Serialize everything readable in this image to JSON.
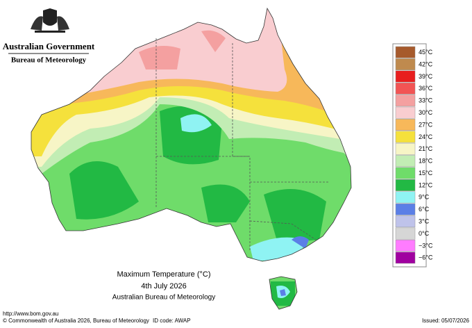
{
  "header": {
    "government": "Australian Government",
    "agency": "Bureau of Meteorology"
  },
  "map": {
    "title": "Maximum Temperature (°C)",
    "date": "4th July 2026",
    "source": "Australian Bureau of Meteorology"
  },
  "legend": [
    {
      "label": "45°C",
      "color": "#a65a2c"
    },
    {
      "label": "42°C",
      "color": "#bf8a4e"
    },
    {
      "label": "39°C",
      "color": "#e81e1e"
    },
    {
      "label": "36°C",
      "color": "#f25454"
    },
    {
      "label": "33°C",
      "color": "#f4a0a0"
    },
    {
      "label": "30°C",
      "color": "#f9cdd0"
    },
    {
      "label": "27°C",
      "color": "#f7b85a"
    },
    {
      "label": "24°C",
      "color": "#f5e13c"
    },
    {
      "label": "21°C",
      "color": "#f7f5c6"
    },
    {
      "label": "18°C",
      "color": "#c2edb4"
    },
    {
      "label": "15°C",
      "color": "#6fdc6a"
    },
    {
      "label": "12°C",
      "color": "#22b944"
    },
    {
      "label": "9°C",
      "color": "#8ff3f3"
    },
    {
      "label": "6°C",
      "color": "#5b7fe6"
    },
    {
      "label": "3°C",
      "color": "#bfc3ea"
    },
    {
      "label": "0°C",
      "color": "#d6d6d6"
    },
    {
      "label": "−3°C",
      "color": "#ff7cff"
    },
    {
      "label": "−6°C",
      "color": "#a000a0"
    }
  ],
  "footer": {
    "url": "http://www.bom.gov.au",
    "copyright": "© Commonwealth of Australia 2026, Bureau of Meteorology",
    "id_code": "ID code: AWAP",
    "issued": "Issued: 05/07/2026"
  }
}
